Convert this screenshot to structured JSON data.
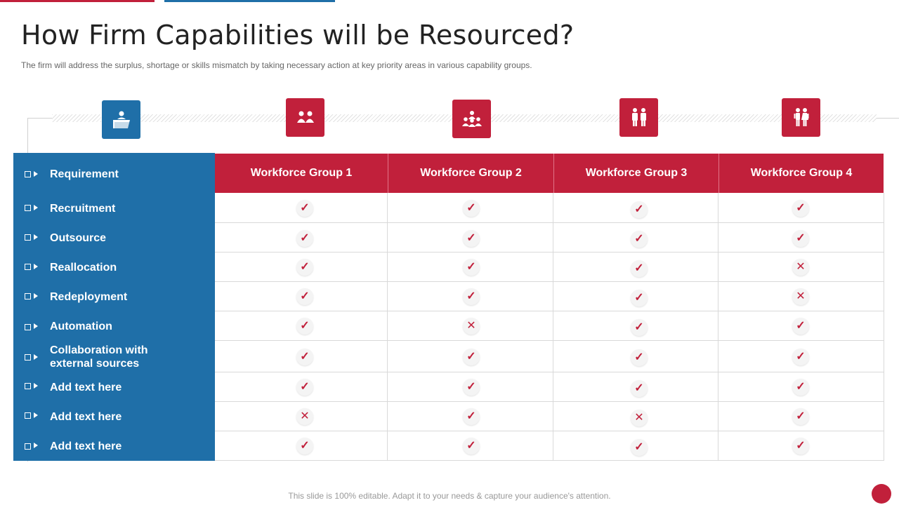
{
  "header": {
    "title": "How Firm Capabilities will be Resourced?",
    "subtitle": "The firm will address the surplus, shortage or skills mismatch by taking necessary action at key priority areas in various capability groups."
  },
  "icons": [
    "folder-icon",
    "two-people-icon",
    "group-icon",
    "two-persons-icon",
    "couple-icon"
  ],
  "table": {
    "corner_label": "Requirement",
    "columns": [
      "Workforce Group 1",
      "Workforce Group 2",
      "Workforce Group 3",
      "Workforce Group 4"
    ],
    "rows": [
      {
        "label": "Recruitment",
        "values": [
          "✓",
          "✓",
          "✓",
          "✓"
        ]
      },
      {
        "label": "Outsource",
        "values": [
          "✓",
          "✓",
          "✓",
          "✓"
        ]
      },
      {
        "label": "Reallocation",
        "values": [
          "✓",
          "✓",
          "✓",
          "✕"
        ]
      },
      {
        "label": "Redeployment",
        "values": [
          "✓",
          "✓",
          "✓",
          "✕"
        ]
      },
      {
        "label": "Automation",
        "values": [
          "✓",
          "✕",
          "✓",
          "✓"
        ]
      },
      {
        "label_line1": "Collaboration with",
        "label_line2": "external sources",
        "values": [
          "✓",
          "✓",
          "✓",
          "✓"
        ]
      },
      {
        "label": "Add text here",
        "values": [
          "✓",
          "✓",
          "✓",
          "✓"
        ]
      },
      {
        "label": "Add text here",
        "values": [
          "✕",
          "✓",
          "✕",
          "✓"
        ]
      },
      {
        "label": "Add text here",
        "values": [
          "✓",
          "✓",
          "✓",
          "✓"
        ]
      }
    ]
  },
  "footer": {
    "note": "This slide is 100% editable. Adapt it to your needs & capture your audience's attention."
  },
  "colors": {
    "accent_red": "#c1203b",
    "accent_blue": "#1f6fa8"
  }
}
